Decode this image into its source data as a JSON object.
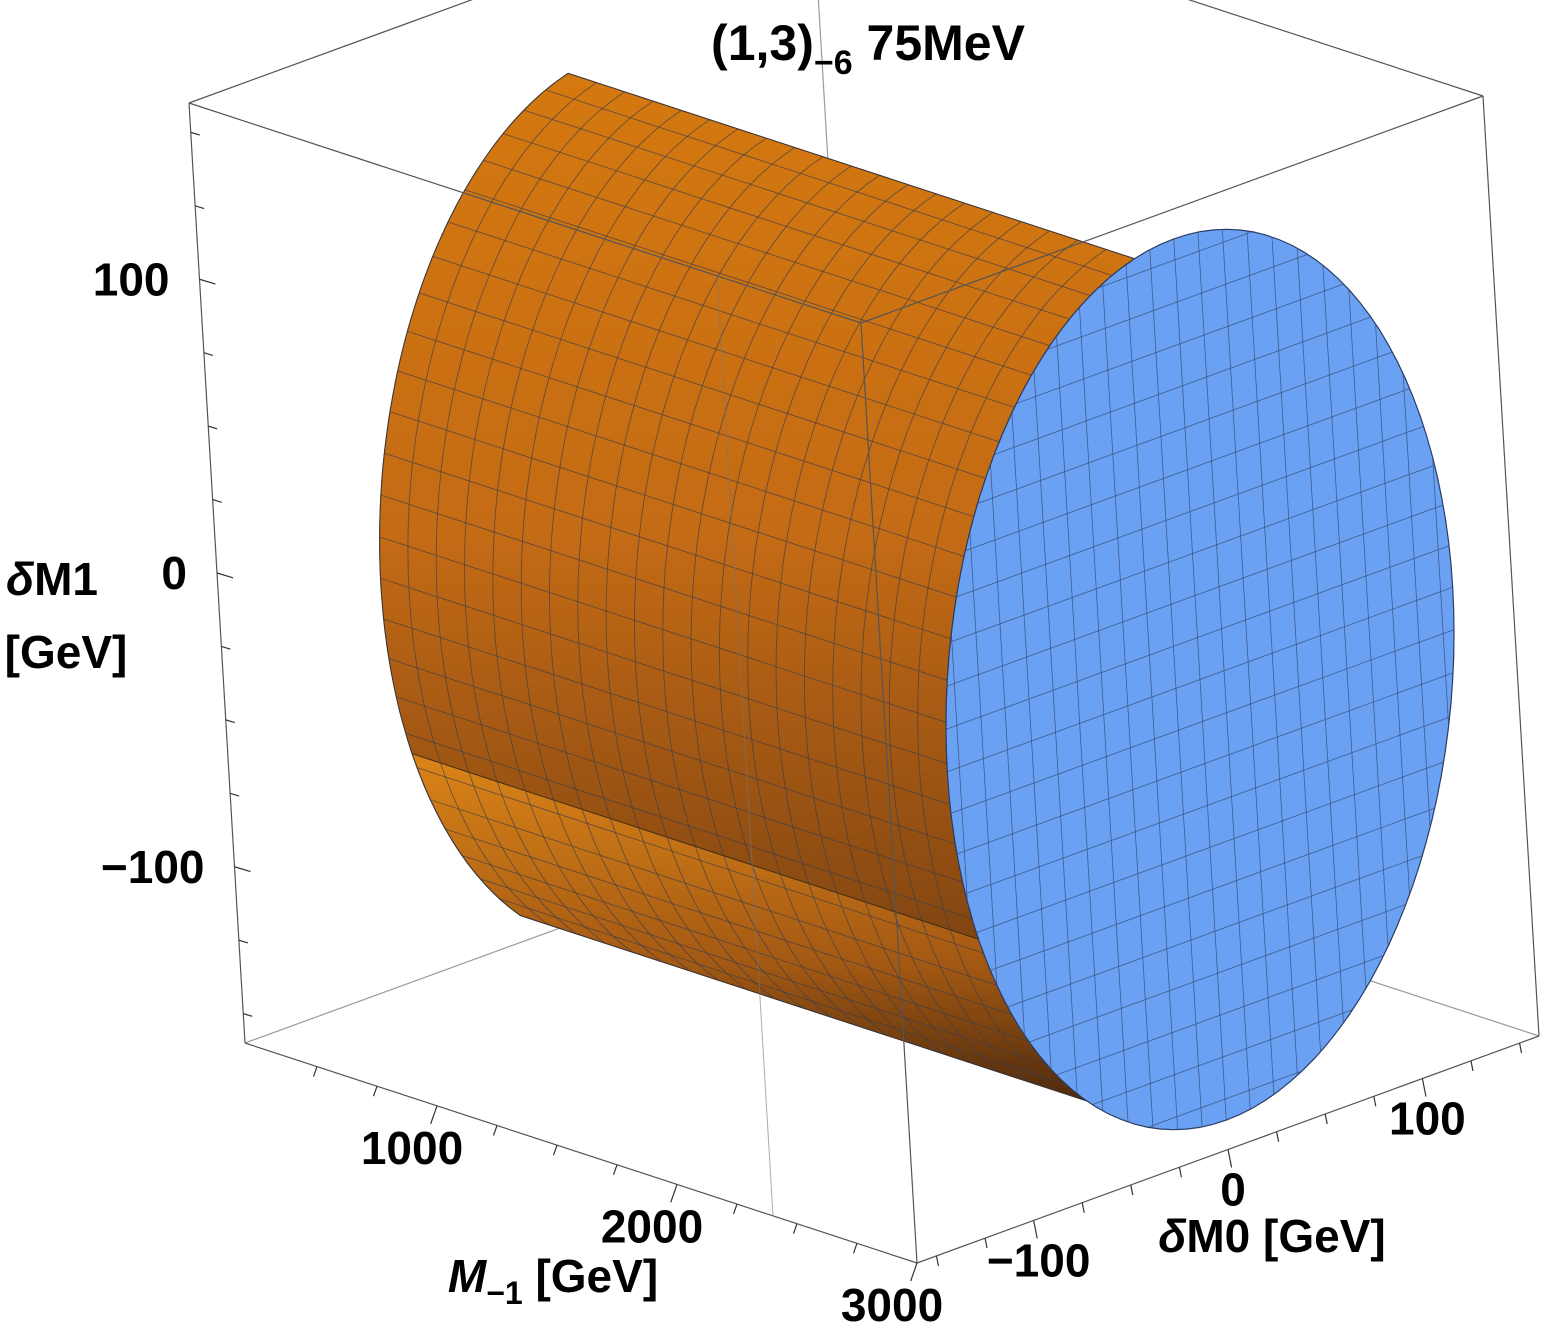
{
  "chart_data": {
    "type": "surface3d",
    "title": {
      "base": "(1,3)",
      "sub": "−6",
      "rest": " 75MeV"
    },
    "axes": {
      "x": {
        "label_base": "M",
        "label_sub": "−1",
        "label_unit": " [GeV]",
        "ticks": [
          {
            "v": 1000,
            "label": "1000"
          },
          {
            "v": 2000,
            "label": "2000"
          },
          {
            "v": 3000,
            "label": "3000"
          }
        ],
        "range": [
          200,
          3000
        ]
      },
      "y": {
        "label": "δM0 [GeV]",
        "ticks": [
          {
            "v": -100,
            "label": "−100"
          },
          {
            "v": 0,
            "label": "0"
          },
          {
            "v": 100,
            "label": "100"
          }
        ],
        "range": [
          -160,
          160
        ]
      },
      "z": {
        "label_line1": "δM1",
        "label_line2": "[GeV]",
        "ticks": [
          {
            "v": 100,
            "label": "100"
          },
          {
            "v": 0,
            "label": "0"
          },
          {
            "v": -100,
            "label": "−100"
          }
        ],
        "range": [
          -160,
          160
        ]
      }
    },
    "region": {
      "shape": "cylinder along M_-1 axis with elliptical cross-section",
      "M_range": [
        640,
        3000
      ],
      "dM0_halfwidth": 130,
      "dM1_halfwidth": 150,
      "side_color": "#c26b16",
      "cap_color": "#6aa1f2"
    }
  }
}
